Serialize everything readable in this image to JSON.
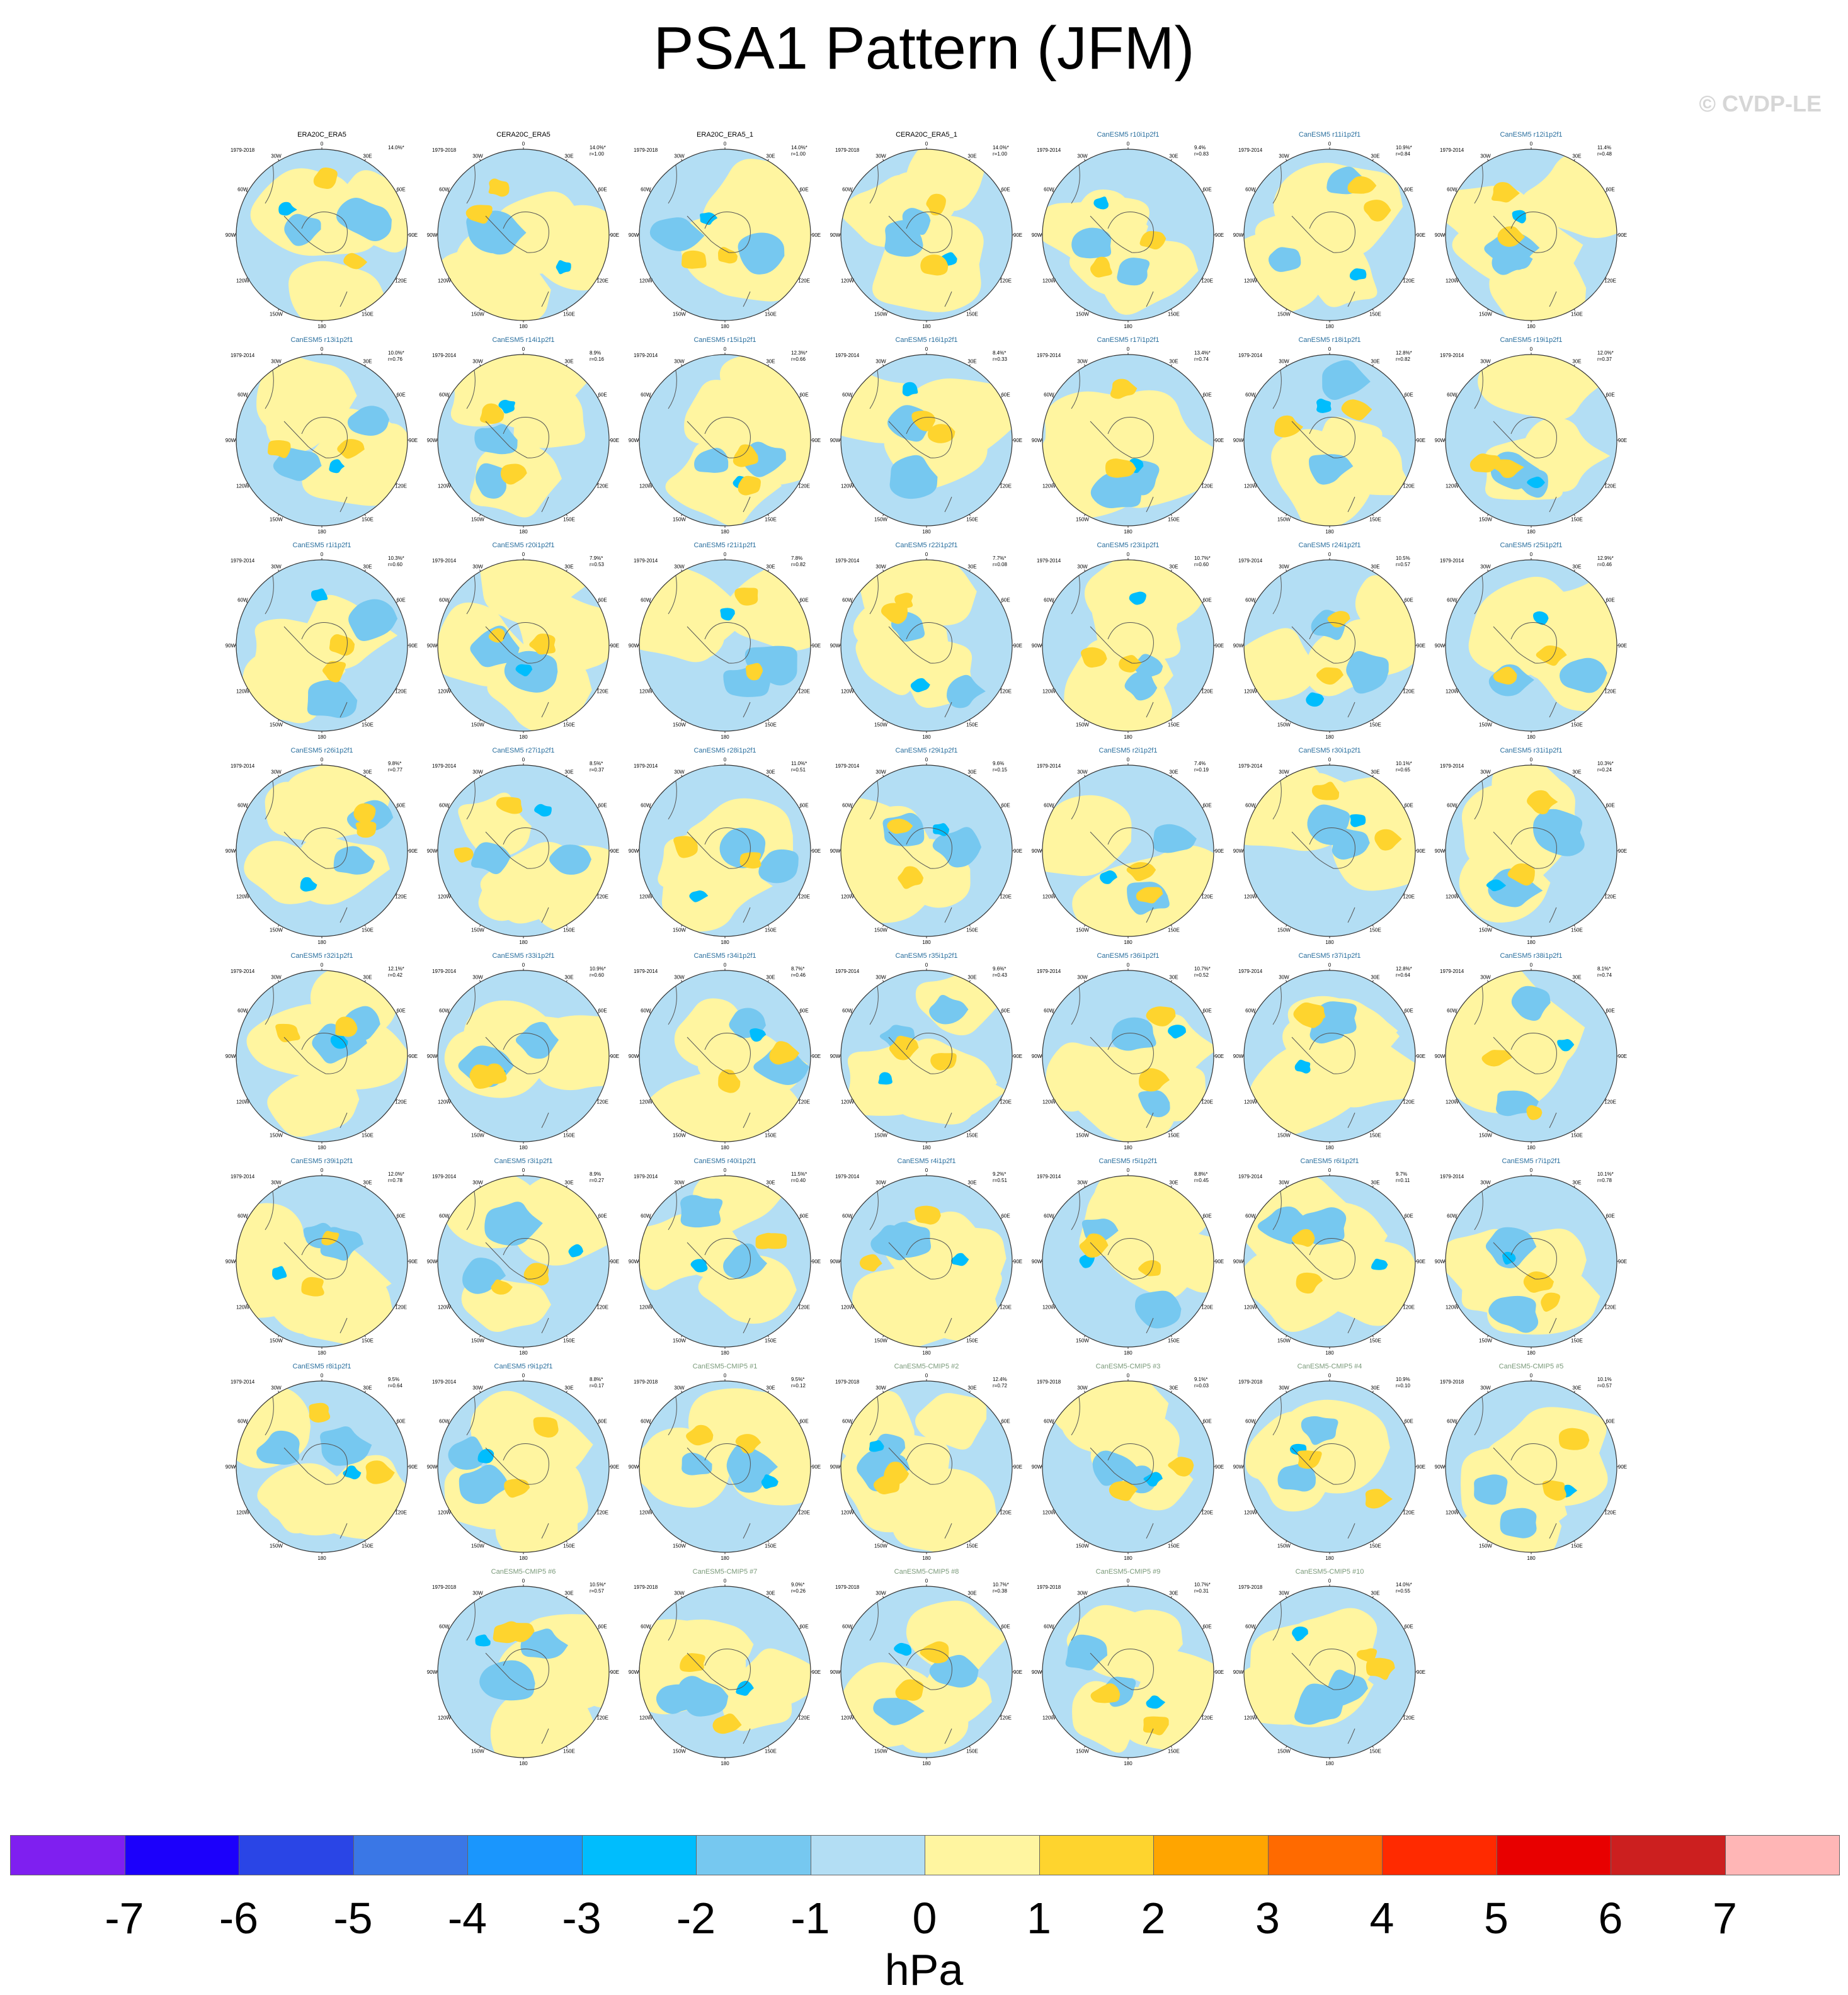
{
  "title": "PSA1 Pattern (JFM)",
  "watermark": "© CVDP-LE",
  "colors": {
    "obs_title": "#000000",
    "model_title": "#2a6f9e",
    "cmip5_title": "#7a9a7a"
  },
  "lon_labels": [
    "0",
    "30E",
    "60E",
    "90E",
    "120E",
    "150E",
    "180",
    "150W",
    "120W",
    "90W",
    "60W",
    "30W"
  ],
  "panels": [
    {
      "name": "ERA20C_ERA5",
      "years": "1979-2018",
      "pct": "14.0%*",
      "r": "",
      "group": "obs"
    },
    {
      "name": "CERA20C_ERA5",
      "years": "1979-2018",
      "pct": "14.0%*",
      "r": "r=1.00",
      "group": "obs"
    },
    {
      "name": "ERA20C_ERA5_1",
      "years": "1979-2018",
      "pct": "14.0%*",
      "r": "r=1.00",
      "group": "obs"
    },
    {
      "name": "CERA20C_ERA5_1",
      "years": "1979-2018",
      "pct": "14.0%*",
      "r": "r=1.00",
      "group": "obs"
    },
    {
      "name": "CanESM5 r10i1p2f1",
      "years": "1979-2014",
      "pct": "9.4%",
      "r": "r=0.83",
      "group": "model"
    },
    {
      "name": "CanESM5 r11i1p2f1",
      "years": "1979-2014",
      "pct": "10.9%*",
      "r": "r=0.84",
      "group": "model"
    },
    {
      "name": "CanESM5 r12i1p2f1",
      "years": "1979-2014",
      "pct": "11.4%",
      "r": "r=0.48",
      "group": "model"
    },
    {
      "name": "CanESM5 r13i1p2f1",
      "years": "1979-2014",
      "pct": "10.0%*",
      "r": "r=0.76",
      "group": "model"
    },
    {
      "name": "CanESM5 r14i1p2f1",
      "years": "1979-2014",
      "pct": "8.9%",
      "r": "r=0.16",
      "group": "model"
    },
    {
      "name": "CanESM5 r15i1p2f1",
      "years": "1979-2014",
      "pct": "12.3%*",
      "r": "r=0.66",
      "group": "model"
    },
    {
      "name": "CanESM5 r16i1p2f1",
      "years": "1979-2014",
      "pct": "8.4%*",
      "r": "r=0.33",
      "group": "model"
    },
    {
      "name": "CanESM5 r17i1p2f1",
      "years": "1979-2014",
      "pct": "13.4%*",
      "r": "r=0.74",
      "group": "model"
    },
    {
      "name": "CanESM5 r18i1p2f1",
      "years": "1979-2014",
      "pct": "12.8%*",
      "r": "r=0.82",
      "group": "model"
    },
    {
      "name": "CanESM5 r19i1p2f1",
      "years": "1979-2014",
      "pct": "12.0%*",
      "r": "r=0.37",
      "group": "model"
    },
    {
      "name": "CanESM5 r1i1p2f1",
      "years": "1979-2014",
      "pct": "10.3%*",
      "r": "r=0.60",
      "group": "model"
    },
    {
      "name": "CanESM5 r20i1p2f1",
      "years": "1979-2014",
      "pct": "7.9%*",
      "r": "r=0.53",
      "group": "model"
    },
    {
      "name": "CanESM5 r21i1p2f1",
      "years": "1979-2014",
      "pct": "7.8%",
      "r": "r=0.82",
      "group": "model"
    },
    {
      "name": "CanESM5 r22i1p2f1",
      "years": "1979-2014",
      "pct": "7.7%*",
      "r": "r=0.08",
      "group": "model"
    },
    {
      "name": "CanESM5 r23i1p2f1",
      "years": "1979-2014",
      "pct": "10.7%*",
      "r": "r=0.60",
      "group": "model"
    },
    {
      "name": "CanESM5 r24i1p2f1",
      "years": "1979-2014",
      "pct": "10.5%",
      "r": "r=0.57",
      "group": "model"
    },
    {
      "name": "CanESM5 r25i1p2f1",
      "years": "1979-2014",
      "pct": "12.9%*",
      "r": "r=0.46",
      "group": "model"
    },
    {
      "name": "CanESM5 r26i1p2f1",
      "years": "1979-2014",
      "pct": "9.8%*",
      "r": "r=0.77",
      "group": "model"
    },
    {
      "name": "CanESM5 r27i1p2f1",
      "years": "1979-2014",
      "pct": "8.5%*",
      "r": "r=0.37",
      "group": "model"
    },
    {
      "name": "CanESM5 r28i1p2f1",
      "years": "1979-2014",
      "pct": "11.0%*",
      "r": "r=0.51",
      "group": "model"
    },
    {
      "name": "CanESM5 r29i1p2f1",
      "years": "1979-2014",
      "pct": "9.6%",
      "r": "r=0.15",
      "group": "model"
    },
    {
      "name": "CanESM5 r2i1p2f1",
      "years": "1979-2014",
      "pct": "7.4%",
      "r": "r=0.19",
      "group": "model"
    },
    {
      "name": "CanESM5 r30i1p2f1",
      "years": "1979-2014",
      "pct": "10.1%*",
      "r": "r=0.65",
      "group": "model"
    },
    {
      "name": "CanESM5 r31i1p2f1",
      "years": "1979-2014",
      "pct": "10.3%*",
      "r": "r=0.24",
      "group": "model"
    },
    {
      "name": "CanESM5 r32i1p2f1",
      "years": "1979-2014",
      "pct": "12.1%*",
      "r": "r=0.42",
      "group": "model"
    },
    {
      "name": "CanESM5 r33i1p2f1",
      "years": "1979-2014",
      "pct": "10.9%*",
      "r": "r=0.60",
      "group": "model"
    },
    {
      "name": "CanESM5 r34i1p2f1",
      "years": "1979-2014",
      "pct": "8.7%*",
      "r": "r=0.46",
      "group": "model"
    },
    {
      "name": "CanESM5 r35i1p2f1",
      "years": "1979-2014",
      "pct": "9.6%*",
      "r": "r=0.43",
      "group": "model"
    },
    {
      "name": "CanESM5 r36i1p2f1",
      "years": "1979-2014",
      "pct": "10.7%*",
      "r": "r=0.52",
      "group": "model"
    },
    {
      "name": "CanESM5 r37i1p2f1",
      "years": "1979-2014",
      "pct": "12.8%*",
      "r": "r=0.64",
      "group": "model"
    },
    {
      "name": "CanESM5 r38i1p2f1",
      "years": "1979-2014",
      "pct": "8.1%*",
      "r": "r=0.74",
      "group": "model"
    },
    {
      "name": "CanESM5 r39i1p2f1",
      "years": "1979-2014",
      "pct": "12.0%*",
      "r": "r=0.78",
      "group": "model"
    },
    {
      "name": "CanESM5 r3i1p2f1",
      "years": "1979-2014",
      "pct": "8.9%",
      "r": "r=0.27",
      "group": "model"
    },
    {
      "name": "CanESM5 r40i1p2f1",
      "years": "1979-2014",
      "pct": "11.5%*",
      "r": "r=0.40",
      "group": "model"
    },
    {
      "name": "CanESM5 r4i1p2f1",
      "years": "1979-2014",
      "pct": "9.2%*",
      "r": "r=0.51",
      "group": "model"
    },
    {
      "name": "CanESM5 r5i1p2f1",
      "years": "1979-2014",
      "pct": "8.8%*",
      "r": "r=0.45",
      "group": "model"
    },
    {
      "name": "CanESM5 r6i1p2f1",
      "years": "1979-2014",
      "pct": "9.7%",
      "r": "r=0.11",
      "group": "model"
    },
    {
      "name": "CanESM5 r7i1p2f1",
      "years": "1979-2014",
      "pct": "10.1%*",
      "r": "r=0.78",
      "group": "model"
    },
    {
      "name": "CanESM5 r8i1p2f1",
      "years": "1979-2014",
      "pct": "9.5%",
      "r": "r=0.64",
      "group": "model"
    },
    {
      "name": "CanESM5 r9i1p2f1",
      "years": "1979-2014",
      "pct": "8.8%*",
      "r": "r=0.17",
      "group": "model"
    },
    {
      "name": "CanESM5-CMIP5 #1",
      "years": "1979-2018",
      "pct": "9.5%*",
      "r": "r=0.12",
      "group": "cmip5"
    },
    {
      "name": "CanESM5-CMIP5 #2",
      "years": "1979-2018",
      "pct": "12.4%",
      "r": "r=0.72",
      "group": "cmip5"
    },
    {
      "name": "CanESM5-CMIP5 #3",
      "years": "1979-2018",
      "pct": "9.1%*",
      "r": "r=0.03",
      "group": "cmip5"
    },
    {
      "name": "CanESM5-CMIP5 #4",
      "years": "1979-2018",
      "pct": "10.9%",
      "r": "r=0.10",
      "group": "cmip5"
    },
    {
      "name": "CanESM5-CMIP5 #5",
      "years": "1979-2018",
      "pct": "10.1%",
      "r": "r=0.57",
      "group": "cmip5"
    },
    {
      "name": "CanESM5-CMIP5 #6",
      "years": "1979-2018",
      "pct": "10.5%*",
      "r": "r=0.57",
      "group": "cmip5"
    },
    {
      "name": "CanESM5-CMIP5 #7",
      "years": "1979-2018",
      "pct": "9.0%*",
      "r": "r=0.26",
      "group": "cmip5"
    },
    {
      "name": "CanESM5-CMIP5 #8",
      "years": "1979-2018",
      "pct": "10.7%*",
      "r": "r=0.38",
      "group": "cmip5"
    },
    {
      "name": "CanESM5-CMIP5 #9",
      "years": "1979-2018",
      "pct": "10.7%*",
      "r": "r=0.31",
      "group": "cmip5"
    },
    {
      "name": "CanESM5-CMIP5 #10",
      "years": "1979-2018",
      "pct": "14.0%*",
      "r": "r=0.55",
      "group": "cmip5"
    }
  ],
  "colorbar": {
    "colors": [
      "#7f1ff0",
      "#1c00fb",
      "#2a45e6",
      "#3a77e6",
      "#1a96fd",
      "#00bdfd",
      "#76c8f0",
      "#b3def4",
      "#fff5a0",
      "#fed42e",
      "#ffa500",
      "#ff6a00",
      "#ff2a00",
      "#e80000",
      "#cc1f1f",
      "#ffb6b6"
    ],
    "ticks": [
      "-7",
      "-6",
      "-5",
      "-4",
      "-3",
      "-2",
      "-1",
      "0",
      "1",
      "2",
      "3",
      "4",
      "5",
      "6",
      "7"
    ],
    "units": "hPa"
  }
}
